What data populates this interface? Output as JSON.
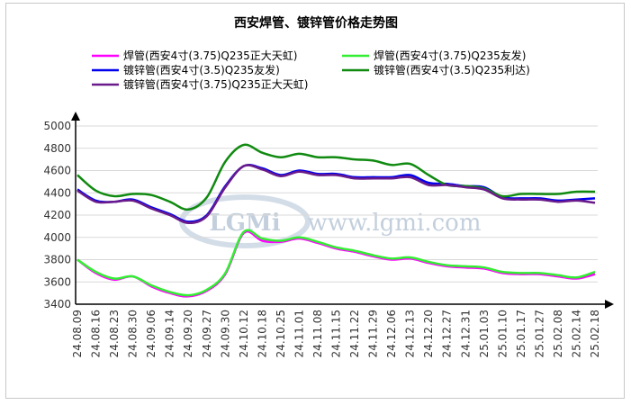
{
  "chart_data": {
    "type": "line",
    "title": "西安焊管、镀锌管价格走势图",
    "xlabel": "",
    "ylabel": "",
    "ylim": [
      3400,
      5000
    ],
    "yticks": [
      3400,
      3600,
      3800,
      4000,
      4200,
      4400,
      4600,
      4800,
      5000
    ],
    "grid": "horizontal",
    "legend_position": "top",
    "categories": [
      "24.08.09",
      "24.08.16",
      "24.08.23",
      "24.08.30",
      "24.09.06",
      "24.09.14",
      "24.09.20",
      "24.09.27",
      "24.09.30",
      "24.10.12",
      "24.10.18",
      "24.10.25",
      "24.11.01",
      "24.11.08",
      "24.11.15",
      "24.11.22",
      "24.11.29",
      "24.12.06",
      "24.12.13",
      "24.12.20",
      "24.12.27",
      "24.12.31",
      "25.01.03",
      "25.01.10",
      "25.01.17",
      "25.01.27",
      "25.02.08",
      "25.02.14",
      "25.02.18"
    ],
    "series": [
      {
        "name": "焊管(西安4寸(3.75)Q235正大天虹)",
        "color": "#ff00ff",
        "values": [
          3800,
          3680,
          3620,
          3650,
          3560,
          3500,
          3470,
          3520,
          3670,
          4040,
          3970,
          3960,
          3990,
          3950,
          3900,
          3870,
          3830,
          3800,
          3810,
          3770,
          3740,
          3730,
          3720,
          3680,
          3670,
          3670,
          3650,
          3630,
          3670
        ]
      },
      {
        "name": "焊管(西安4寸(3.75)Q235友发)",
        "color": "#33ee33",
        "values": [
          3800,
          3690,
          3630,
          3650,
          3570,
          3510,
          3480,
          3530,
          3680,
          4050,
          3990,
          3970,
          4000,
          3960,
          3910,
          3880,
          3840,
          3810,
          3820,
          3780,
          3750,
          3740,
          3730,
          3690,
          3680,
          3680,
          3660,
          3640,
          3690
        ]
      },
      {
        "name": "镀锌管(西安4寸(3.5)Q235友发)",
        "color": "#0000ee",
        "values": [
          4430,
          4330,
          4320,
          4340,
          4270,
          4210,
          4140,
          4200,
          4460,
          4640,
          4620,
          4560,
          4600,
          4570,
          4570,
          4540,
          4540,
          4540,
          4560,
          4490,
          4480,
          4460,
          4450,
          4360,
          4350,
          4350,
          4330,
          4340,
          4350
        ]
      },
      {
        "name": "镀锌管(西安4寸(3.5)Q235利达)",
        "color": "#108a10",
        "values": [
          4560,
          4420,
          4370,
          4390,
          4380,
          4320,
          4250,
          4360,
          4680,
          4830,
          4760,
          4720,
          4750,
          4720,
          4720,
          4700,
          4690,
          4650,
          4660,
          4560,
          4470,
          4460,
          4440,
          4370,
          4390,
          4390,
          4390,
          4410,
          4410
        ]
      },
      {
        "name": "镀锌管(西安4寸(3.75)Q235正大天虹)",
        "color": "#6a1a8a",
        "values": [
          4420,
          4320,
          4320,
          4330,
          4260,
          4200,
          4130,
          4190,
          4450,
          4640,
          4610,
          4550,
          4590,
          4560,
          4560,
          4530,
          4530,
          4530,
          4540,
          4470,
          4470,
          4450,
          4430,
          4350,
          4340,
          4340,
          4320,
          4330,
          4310
        ]
      }
    ]
  },
  "watermark": {
    "logo": "LGMi",
    "url": "www.lgmi.com"
  }
}
